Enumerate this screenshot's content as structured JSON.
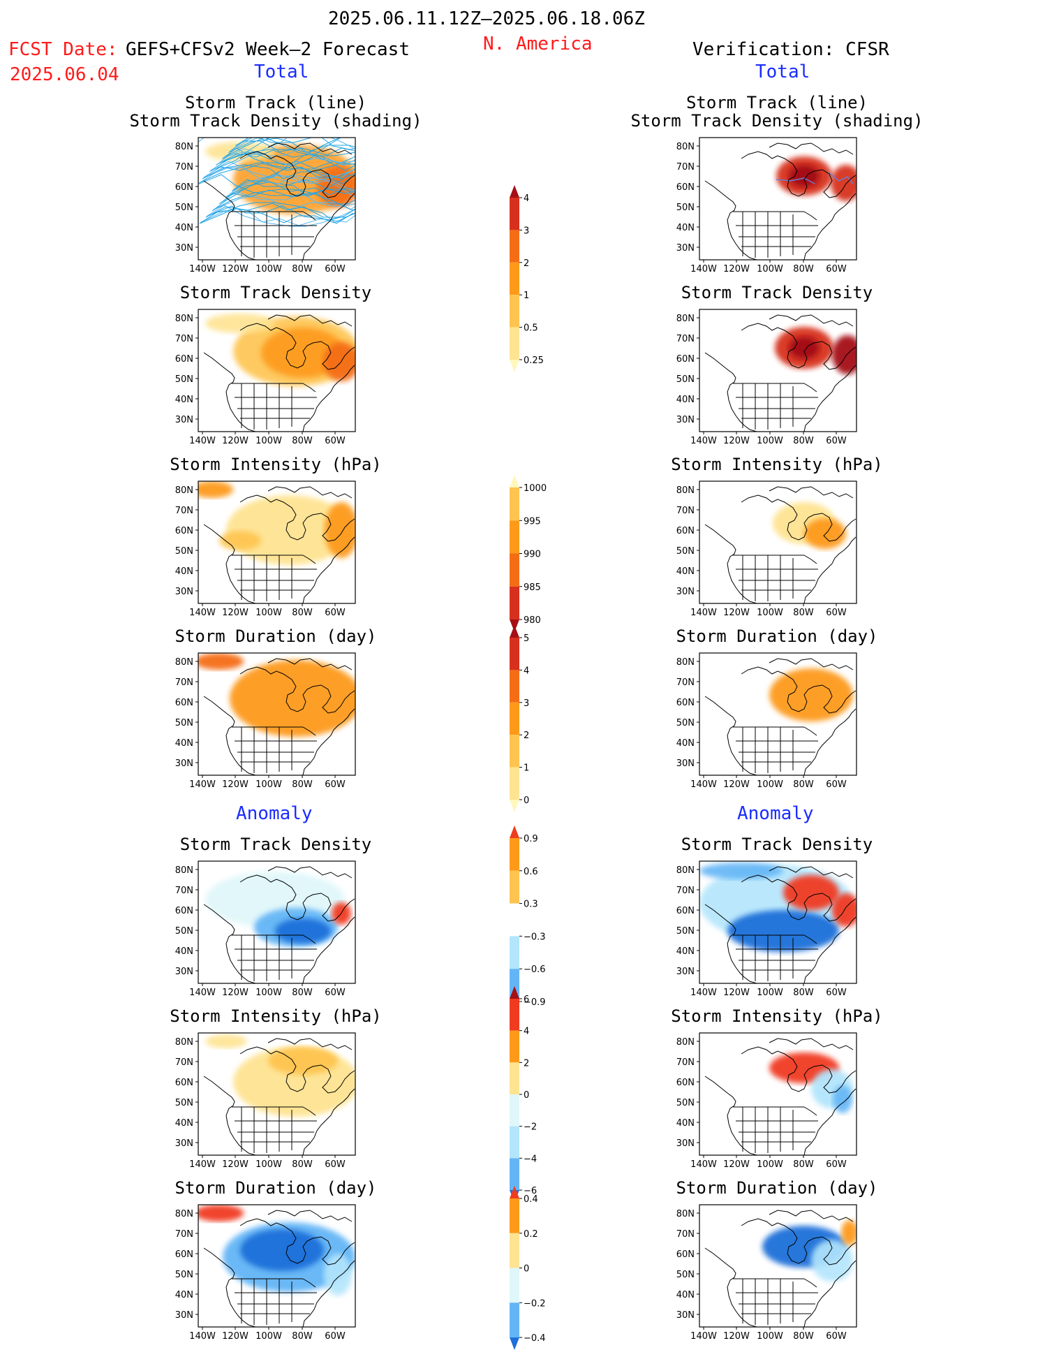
{
  "header": {
    "period": "2025.06.11.12Z—2025.06.18.06Z",
    "region": "N. America",
    "fcst_label": "FCST Date:",
    "fcst_model": "GEFS+CFSv2 Week—2 Forecast",
    "fcst_date": "2025.06.04",
    "verification": "Verification: CFSR"
  },
  "sections": {
    "total": "Total",
    "anomaly": "Anomaly"
  },
  "panel_titles": {
    "track_l1": "Storm Track (line)",
    "track_l2": "Storm Track Density (shading)",
    "density": "Storm Track Density",
    "intensity": "Storm Intensity (hPa)",
    "duration": "Storm Duration (day)"
  },
  "axes": {
    "lat_labels": [
      "80N",
      "70N",
      "60N",
      "50N",
      "40N",
      "30N"
    ],
    "lon_labels": [
      "140W",
      "120W",
      "100W",
      "80W",
      "60W"
    ]
  },
  "colorbars": {
    "density_total": {
      "labels": [
        "4",
        "3",
        "2",
        "1",
        "0.5",
        "0.25"
      ],
      "colors": [
        "#a50f15",
        "#d7301f",
        "#f46d15",
        "#fd9a1a",
        "#fec44f",
        "#fee391",
        "#fff7bc"
      ]
    },
    "intensity_total": {
      "labels": [
        "1000",
        "995",
        "990",
        "985",
        "980"
      ],
      "colors": [
        "#fff7bc",
        "#fec44f",
        "#fd9a1a",
        "#f46d15",
        "#d7301f",
        "#a50f15"
      ]
    },
    "duration_total": {
      "labels": [
        "5",
        "4",
        "3",
        "2",
        "1",
        "0"
      ],
      "colors": [
        "#a50f15",
        "#d7301f",
        "#f46d15",
        "#fd9a1a",
        "#fec44f",
        "#fee391",
        "#fff7bc"
      ]
    },
    "density_anom": {
      "labels": [
        "0.9",
        "0.6",
        "0.3",
        "−0.3",
        "−0.6",
        "−0.9"
      ],
      "colors": [
        "#f03b20",
        "#fd9a1a",
        "#fec44f",
        "#ffffff",
        "#b3e5fc",
        "#64b5f6",
        "#1e6fd9"
      ]
    },
    "intensity_anom": {
      "labels": [
        "6",
        "4",
        "2",
        "0",
        "−2",
        "−4",
        "−6"
      ],
      "colors": [
        "#a50f15",
        "#f03b20",
        "#fd9a1a",
        "#fee391",
        "#e0f7fa",
        "#b3e5fc",
        "#64b5f6",
        "#1e6fd9"
      ]
    },
    "duration_anom": {
      "labels": [
        "0.4",
        "0.2",
        "0",
        "−0.2",
        "−0.4"
      ],
      "colors": [
        "#f03b20",
        "#fd9a1a",
        "#fee391",
        "#e0f7fa",
        "#64b5f6",
        "#1e6fd9"
      ]
    }
  }
}
